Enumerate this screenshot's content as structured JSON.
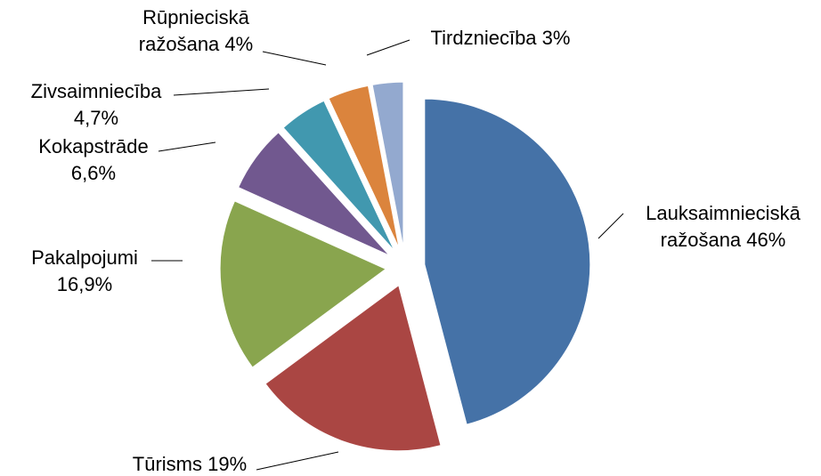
{
  "chart_data": {
    "type": "pie",
    "categories": [
      "Lauksaimnieciskā ražošana",
      "Tūrisms",
      "Pakalpojumi",
      "Kokapstrāde",
      "Zivsaimniecība",
      "Rūpnieciskā ražošana",
      "Tirdzniecība"
    ],
    "values": [
      46,
      19,
      16.9,
      6.6,
      4.7,
      4,
      3
    ],
    "value_labels": [
      "46%",
      "19%",
      "16,9%",
      "6,6%",
      "4,7%",
      "4%",
      "3%"
    ],
    "colors": [
      "#4572a7",
      "#aa4643",
      "#89a54e",
      "#71588f",
      "#4198af",
      "#db843d",
      "#93a9cf"
    ]
  }
}
